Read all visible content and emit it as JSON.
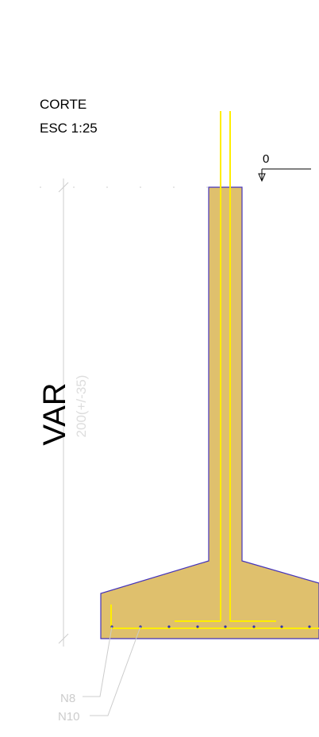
{
  "header": {
    "title": "CORTE",
    "scale": "ESC 1:25"
  },
  "level": {
    "label": "0"
  },
  "dimension": {
    "label": "VAR",
    "value": "200(+/-35)"
  },
  "rebar_labels": [
    "N8",
    "N10"
  ]
}
